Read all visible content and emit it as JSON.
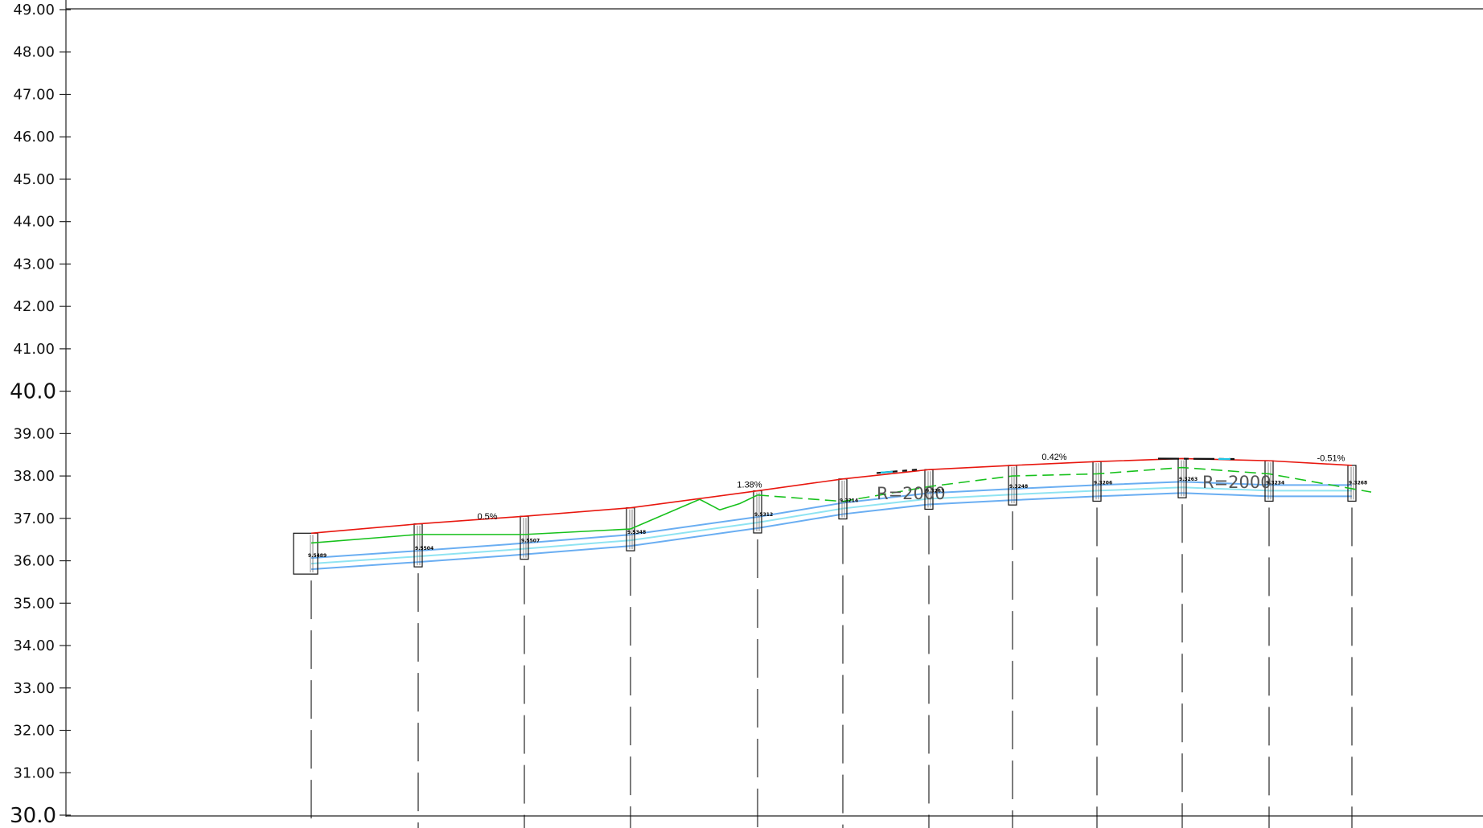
{
  "y_axis": {
    "min": 30,
    "max": 49,
    "ticks": [
      {
        "value": 49,
        "label": "49.00",
        "major": false
      },
      {
        "value": 48,
        "label": "48.00",
        "major": false
      },
      {
        "value": 47,
        "label": "47.00",
        "major": false
      },
      {
        "value": 46,
        "label": "46.00",
        "major": false
      },
      {
        "value": 45,
        "label": "45.00",
        "major": false
      },
      {
        "value": 44,
        "label": "44.00",
        "major": false
      },
      {
        "value": 43,
        "label": "43.00",
        "major": false
      },
      {
        "value": 42,
        "label": "42.00",
        "major": false
      },
      {
        "value": 41,
        "label": "41.00",
        "major": false
      },
      {
        "value": 40,
        "label": "40.0",
        "major": true
      },
      {
        "value": 39,
        "label": "39.00",
        "major": false
      },
      {
        "value": 38,
        "label": "38.00",
        "major": false
      },
      {
        "value": 37,
        "label": "37.00",
        "major": false
      },
      {
        "value": 36,
        "label": "36.00",
        "major": false
      },
      {
        "value": 35,
        "label": "35.00",
        "major": false
      },
      {
        "value": 34,
        "label": "34.00",
        "major": false
      },
      {
        "value": 33,
        "label": "33.00",
        "major": false
      },
      {
        "value": 32,
        "label": "32.00",
        "major": false
      },
      {
        "value": 31,
        "label": "31.00",
        "major": false
      },
      {
        "value": 30,
        "label": "30.0",
        "major": true
      }
    ]
  },
  "grade_labels": [
    "0.5%",
    "1.38%",
    "0.42%",
    "-0.51%"
  ],
  "curve_labels": [
    "R=2000",
    "R=2000"
  ],
  "pipe_labels": [
    "9.5489",
    "9.5504",
    "9.5507",
    "9.5348",
    "9.5312",
    "9.3214",
    "9.3263",
    "9.3248",
    "9.3206",
    "9.3263",
    "9.3234",
    "9.3268"
  ],
  "colors": {
    "design_line": "#e8170f",
    "ground_line": "#17c11c",
    "pipe_outer": "#6aaef2",
    "pipe_inner": "#8fe4f2",
    "highlight": "#1ec6e6",
    "axis": "#222222"
  },
  "chart_data": {
    "type": "line",
    "ylim": [
      30,
      49
    ],
    "series": [
      {
        "stations": [
          1,
          2,
          3,
          4,
          5,
          6,
          7,
          8,
          9,
          10,
          11,
          12
        ],
        "values": [
          36.65,
          36.87,
          37.05,
          37.25,
          37.65,
          37.93,
          38.15,
          38.25,
          38.34,
          38.41,
          38.36,
          38.25
        ]
      },
      {
        "stations": [
          1,
          2,
          3,
          4,
          5,
          6,
          7,
          8,
          9,
          10,
          11,
          12
        ],
        "values": [
          36.42,
          36.62,
          36.62,
          36.75,
          37.55,
          37.4,
          37.75,
          38.0,
          38.05,
          38.2,
          38.05,
          37.7
        ]
      },
      {
        "stations": [
          1,
          2,
          3,
          4,
          5,
          6,
          7,
          8,
          9,
          10,
          11,
          12
        ],
        "values": [
          35.8,
          35.97,
          36.15,
          36.35,
          36.77,
          37.1,
          37.33,
          37.43,
          37.52,
          37.6,
          37.52,
          37.52
        ]
      }
    ]
  }
}
